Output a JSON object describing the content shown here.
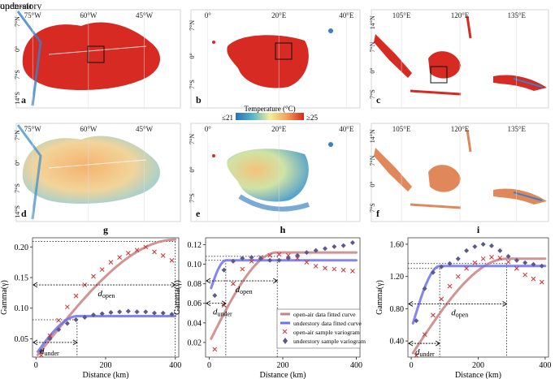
{
  "rows": {
    "open_air": "open-air",
    "understory": "understory"
  },
  "maps": {
    "panels": [
      {
        "letter": "a",
        "lon": [
          "75°W",
          "60°W",
          "45°W"
        ],
        "lat": [
          "7°N",
          "0°",
          "7°S",
          "14°S"
        ]
      },
      {
        "letter": "b",
        "lon": [
          "0°",
          "20°E",
          "40°E"
        ],
        "lat": [
          "7°N",
          "0°",
          "7°S"
        ]
      },
      {
        "letter": "c",
        "lon": [
          "105°E",
          "120°E",
          "135°E"
        ],
        "lat": [
          "14°N",
          "7°N",
          "0°",
          "7°S"
        ]
      },
      {
        "letter": "d",
        "lon": [
          "75°W",
          "60°W",
          "45°W"
        ],
        "lat": [
          "7°N",
          "0°",
          "7°S",
          "14°S"
        ]
      },
      {
        "letter": "e",
        "lon": [
          "0°",
          "20°E",
          "40°E"
        ],
        "lat": [
          "7°N",
          "0°",
          "7°S"
        ]
      },
      {
        "letter": "f",
        "lon": [
          "105°E",
          "120°E",
          "135°E"
        ],
        "lat": [
          "14°N",
          "7°N",
          "0°",
          "7°S"
        ]
      }
    ],
    "colorbar": {
      "title": "Temperature (°C)",
      "min_label": "≤21",
      "max_label": "≥25",
      "colors": [
        "#2b6fb8",
        "#55b7c8",
        "#f2ee9a",
        "#f5a05a",
        "#d7261e"
      ]
    },
    "colors": {
      "warm": "#d62a22",
      "water": "#3a7fc4",
      "mid": "#e88a5a",
      "pale": "#f4d3b0"
    }
  },
  "chart_data": [
    {
      "type": "scatter",
      "title": "g",
      "xlabel": "Distance (km)",
      "ylabel": "Gamma(γ)",
      "xlim": [
        -10,
        410
      ],
      "ylim": [
        0.02,
        0.215
      ],
      "xticks": [
        0,
        200,
        400
      ],
      "yticks": [
        0.05,
        0.1,
        0.15,
        0.2
      ],
      "ytick_labels": [
        "0.05",
        "0.10",
        "0.15",
        "0.20"
      ],
      "series": [
        {
          "name": "open-air sample variogram",
          "marker": "x",
          "color": "#d03030",
          "x": [
            15,
            40,
            65,
            90,
            115,
            140,
            165,
            190,
            215,
            240,
            265,
            290,
            315,
            340,
            365,
            390
          ],
          "y": [
            0.023,
            0.055,
            0.08,
            0.102,
            0.12,
            0.138,
            0.152,
            0.163,
            0.175,
            0.183,
            0.19,
            0.195,
            0.2,
            0.192,
            0.186,
            0.178
          ]
        },
        {
          "name": "understory sample variogram",
          "marker": "diamond",
          "color": "#5a5a8a",
          "x": [
            15,
            40,
            65,
            90,
            115,
            140,
            165,
            190,
            215,
            240,
            265,
            290,
            315,
            340,
            365,
            390
          ],
          "y": [
            0.03,
            0.05,
            0.065,
            0.075,
            0.081,
            0.085,
            0.089,
            0.091,
            0.093,
            0.094,
            0.095,
            0.094,
            0.094,
            0.092,
            0.092,
            0.09
          ]
        },
        {
          "name": "open-air data fitted curve",
          "kind": "fit",
          "color": "#c98080",
          "sill": 0.212,
          "nugget": 0.02,
          "range": 400
        },
        {
          "name": "understory data fitted curve",
          "kind": "fit",
          "color": "#6f6ff0",
          "sill": 0.087,
          "nugget": 0.025,
          "range": 120
        }
      ],
      "annotations": [
        {
          "label": "d",
          "sub": "open",
          "from": 0,
          "to": 400,
          "y": 0.138
        },
        {
          "label": "d",
          "sub": "under",
          "from": 0,
          "to": 118,
          "y": 0.044
        }
      ],
      "guides": [
        {
          "x_from": 0,
          "x_to": 400,
          "y": 0.209,
          "vertical_to": 400
        },
        {
          "x_from": 0,
          "x_to": 118,
          "y": 0.081,
          "vertical_to": 118
        }
      ]
    },
    {
      "type": "scatter",
      "title": "h",
      "xlabel": "Distance (km)",
      "ylabel": "Gamma(γ)",
      "xlim": [
        -10,
        410
      ],
      "ylim": [
        0.005,
        0.127
      ],
      "xticks": [
        0,
        200,
        400
      ],
      "yticks": [
        0.02,
        0.04,
        0.06,
        0.08,
        0.1,
        0.12
      ],
      "ytick_labels": [
        "0.02",
        "0.04",
        "0.06",
        "0.08",
        "0.10",
        "0.12"
      ],
      "series": [
        {
          "name": "open-air sample variogram",
          "marker": "x",
          "color": "#d03030",
          "x": [
            15,
            40,
            65,
            90,
            115,
            140,
            165,
            190,
            215,
            240,
            265,
            290,
            315,
            340,
            365,
            390
          ],
          "y": [
            0.013,
            0.058,
            0.08,
            0.095,
            0.103,
            0.107,
            0.109,
            0.11,
            0.109,
            0.106,
            0.102,
            0.098,
            0.096,
            0.095,
            0.094,
            0.093
          ]
        },
        {
          "name": "understory sample variogram",
          "marker": "diamond",
          "color": "#5a5a8a",
          "x": [
            15,
            40,
            65,
            90,
            115,
            140,
            165,
            190,
            215,
            240,
            265,
            290,
            315,
            340,
            365,
            390
          ],
          "y": [
            0.068,
            0.094,
            0.103,
            0.106,
            0.107,
            0.106,
            0.104,
            0.104,
            0.106,
            0.109,
            0.112,
            0.114,
            0.116,
            0.118,
            0.119,
            0.122
          ]
        },
        {
          "name": "open-air data fitted curve",
          "kind": "fit",
          "color": "#c98080",
          "sill": 0.112,
          "nugget": 0.02,
          "range": 185
        },
        {
          "name": "understory data fitted curve",
          "kind": "fit",
          "color": "#6f6ff0",
          "sill": 0.104,
          "nugget": 0.07,
          "range": 45
        }
      ],
      "annotations": [
        {
          "label": "d",
          "sub": "open",
          "from": 0,
          "to": 185,
          "y": 0.083
        },
        {
          "label": "d",
          "sub": "under",
          "from": 0,
          "to": 45,
          "y": 0.06
        }
      ],
      "guides": [
        {
          "x_from": 0,
          "x_to": 185,
          "y": 0.108,
          "vertical_to": 185
        },
        {
          "x_from": 0,
          "x_to": 45,
          "y": 0.104,
          "vertical_to": 45
        }
      ],
      "legend": {
        "position": "bottom-right",
        "entries": [
          "open-air data fitted curve",
          "understory data fitted curve",
          "open-air sample variogram",
          "understory sample variogram"
        ]
      }
    },
    {
      "type": "scatter",
      "title": "i",
      "xlabel": "Distance (km)",
      "ylabel": "Gamma(γ)",
      "xlim": [
        -10,
        410
      ],
      "ylim": [
        0.2,
        1.68
      ],
      "xticks": [
        0,
        200,
        400
      ],
      "yticks": [
        0.4,
        0.8,
        1.2,
        1.6
      ],
      "ytick_labels": [
        "0.40",
        "0.80",
        "1.20",
        "1.60"
      ],
      "series": [
        {
          "name": "open-air sample variogram",
          "marker": "x",
          "color": "#d03030",
          "x": [
            15,
            40,
            65,
            90,
            115,
            140,
            165,
            190,
            215,
            240,
            265,
            290,
            315,
            340,
            365,
            390
          ],
          "y": [
            0.22,
            0.48,
            0.72,
            0.92,
            1.08,
            1.2,
            1.3,
            1.37,
            1.42,
            1.44,
            1.43,
            1.38,
            1.3,
            1.22,
            1.17,
            1.13
          ]
        },
        {
          "name": "understory sample variogram",
          "marker": "diamond",
          "color": "#5a5a8a",
          "x": [
            15,
            40,
            65,
            90,
            115,
            140,
            165,
            190,
            215,
            240,
            265,
            290,
            315,
            340,
            365,
            390
          ],
          "y": [
            0.65,
            1.05,
            1.25,
            1.32,
            1.36,
            1.42,
            1.52,
            1.57,
            1.6,
            1.58,
            1.52,
            1.45,
            1.4,
            1.37,
            1.35,
            1.33
          ]
        },
        {
          "name": "open-air data fitted curve",
          "kind": "fit",
          "color": "#c98080",
          "sill": 1.42,
          "nugget": 0.22,
          "range": 285
        },
        {
          "name": "understory data fitted curve",
          "kind": "fit",
          "color": "#6f6ff0",
          "sill": 1.33,
          "nugget": 0.55,
          "range": 85
        }
      ],
      "annotations": [
        {
          "label": "d",
          "sub": "open",
          "from": 0,
          "to": 285,
          "y": 0.86
        },
        {
          "label": "d",
          "sub": "under",
          "from": 0,
          "to": 85,
          "y": 0.37
        }
      ],
      "guides": [
        {
          "x_from": 0,
          "x_to": 285,
          "y": 1.36,
          "vertical_to": 285
        },
        {
          "x_from": 0,
          "x_to": 85,
          "y": 1.3,
          "vertical_to": 85
        }
      ]
    }
  ]
}
